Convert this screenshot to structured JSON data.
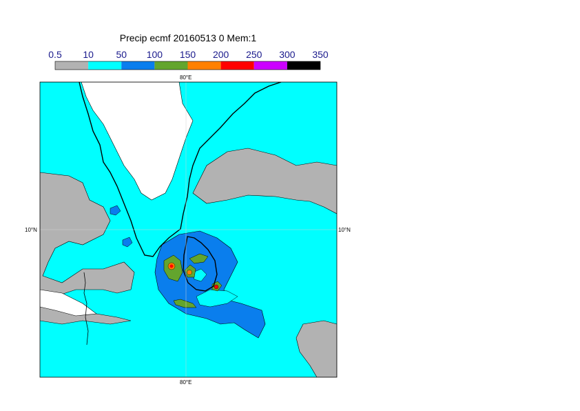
{
  "title": "Precip ecmf 20160513 0 Mem:1",
  "legend": {
    "ticks": [
      "0.5",
      "10",
      "50",
      "100",
      "150",
      "200",
      "250",
      "300",
      "350"
    ],
    "colors": [
      "#b2b2b2",
      "#00ffff",
      "#0a7eed",
      "#63a52d",
      "#ff8000",
      "#ff0000",
      "#cc00ff",
      "#000000"
    ]
  },
  "map": {
    "lon_label_top": "80°E",
    "lon_label_bottom": "80°E",
    "lat_label_left": "10°N",
    "lat_label_right": "10°N",
    "ocean_color": "#00ffff",
    "land_color": "#ffffff",
    "light_precip_color": "#b2b2b2",
    "moderate_precip_color": "#0a7eed",
    "heavy_precip_color": "#63a52d"
  }
}
